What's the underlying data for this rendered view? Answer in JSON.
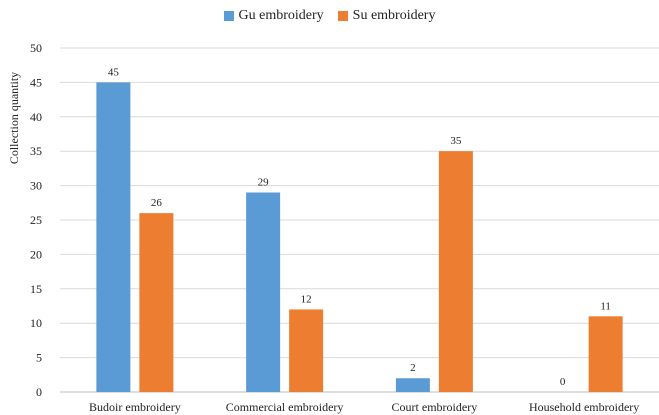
{
  "chart_data": {
    "type": "bar",
    "title": "",
    "xlabel": "",
    "ylabel": "Collection quantity",
    "ylim": [
      0,
      50
    ],
    "yticks": [
      0,
      5,
      10,
      15,
      20,
      25,
      30,
      35,
      40,
      45,
      50
    ],
    "grid": true,
    "legend_position": "top-center",
    "categories": [
      "Budoir embroidery",
      "Commercial embroidery",
      "Court embroidery",
      "Household embroidery"
    ],
    "series": [
      {
        "name": "Gu embroidery",
        "color": "#5b9bd5",
        "values": [
          45,
          29,
          2,
          0
        ]
      },
      {
        "name": "Su embroidery",
        "color": "#ed7d31",
        "values": [
          26,
          12,
          35,
          11
        ]
      }
    ]
  }
}
